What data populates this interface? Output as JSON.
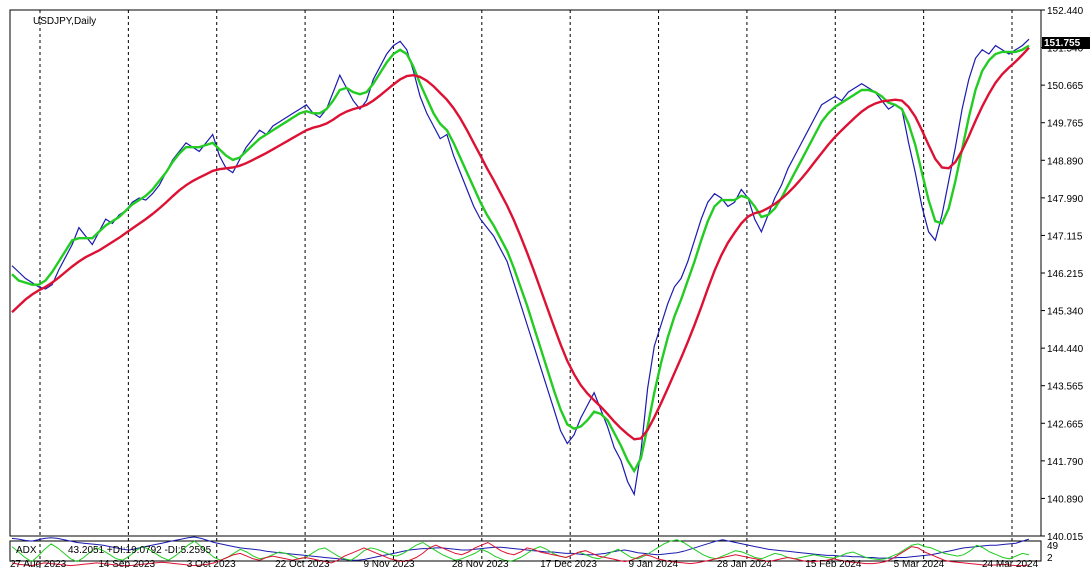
{
  "chart_data": [
    {
      "type": "line",
      "title": "USDJPY,Daily",
      "price_current": "151.755",
      "ylim": [
        140.015,
        152.44
      ],
      "y_ticks": [
        "152.440",
        "151.540",
        "150.665",
        "149.765",
        "148.890",
        "147.990",
        "147.115",
        "146.215",
        "145.340",
        "144.440",
        "143.565",
        "142.665",
        "141.790",
        "140.890",
        "140.015"
      ],
      "x_ticks": [
        "27 Aug 2023",
        "14 Sep 2023",
        "3 Oct 2023",
        "22 Oct 2023",
        "9 Nov 2023",
        "28 Nov 2023",
        "17 Dec 2023",
        "9 Jan 2024",
        "28 Jan 2024",
        "15 Feb 2024",
        "5 Mar 2024",
        "24 Mar 2024"
      ],
      "grid": "vertical dashed",
      "colors": {
        "price": "#1b1bb0",
        "fast_ma": "#22cc22",
        "slow_ma": "#dd1133"
      },
      "series": [
        {
          "key": "price",
          "values": [
            146.4,
            146.25,
            146.1,
            146.0,
            145.9,
            145.85,
            145.95,
            146.3,
            146.6,
            146.9,
            147.3,
            147.1,
            146.9,
            147.2,
            147.5,
            147.4,
            147.6,
            147.7,
            147.9,
            148.0,
            147.95,
            148.1,
            148.3,
            148.6,
            148.9,
            149.1,
            149.3,
            149.2,
            149.1,
            149.3,
            149.5,
            149.0,
            148.7,
            148.6,
            148.9,
            149.2,
            149.4,
            149.6,
            149.5,
            149.7,
            149.8,
            149.9,
            150.0,
            150.1,
            150.2,
            150.0,
            149.9,
            150.1,
            150.5,
            150.9,
            150.6,
            150.3,
            150.1,
            150.3,
            150.8,
            151.1,
            151.4,
            151.6,
            151.7,
            151.5,
            151.0,
            150.4,
            150.0,
            149.7,
            149.4,
            149.5,
            149.0,
            148.6,
            148.2,
            147.8,
            147.5,
            147.3,
            147.1,
            146.8,
            146.5,
            146.0,
            145.5,
            145.0,
            144.5,
            144.0,
            143.5,
            143.0,
            142.5,
            142.2,
            142.4,
            142.8,
            143.1,
            143.4,
            143.0,
            142.6,
            142.1,
            141.8,
            141.3,
            141.0,
            142.0,
            143.5,
            144.5,
            145.0,
            145.5,
            145.9,
            146.1,
            146.5,
            147.0,
            147.5,
            147.9,
            148.1,
            148.0,
            147.8,
            147.9,
            148.2,
            148.0,
            147.5,
            147.2,
            147.6,
            148.0,
            148.3,
            148.7,
            149.0,
            149.3,
            149.6,
            149.9,
            150.2,
            150.3,
            150.4,
            150.3,
            150.5,
            150.6,
            150.7,
            150.6,
            150.5,
            150.3,
            150.1,
            150.2,
            150.1,
            149.3,
            148.6,
            147.8,
            147.2,
            147.0,
            147.6,
            148.4,
            149.2,
            150.1,
            150.8,
            151.3,
            151.5,
            151.4,
            151.6,
            151.5,
            151.4,
            151.5,
            151.6,
            151.75
          ]
        },
        {
          "key": "fast_ma",
          "values": [
            146.2,
            146.05,
            146.0,
            145.95,
            145.95,
            146.05,
            146.25,
            146.5,
            146.75,
            147.0,
            147.05,
            147.05,
            147.05,
            147.2,
            147.35,
            147.45,
            147.55,
            147.7,
            147.85,
            147.95,
            148.05,
            148.2,
            148.4,
            148.6,
            148.85,
            149.05,
            149.2,
            149.2,
            149.2,
            149.25,
            149.3,
            149.15,
            149.0,
            148.9,
            148.95,
            149.1,
            149.25,
            149.4,
            149.5,
            149.6,
            149.7,
            149.8,
            149.9,
            150.0,
            150.05,
            150.0,
            150.0,
            150.1,
            150.3,
            150.55,
            150.6,
            150.5,
            150.45,
            150.5,
            150.7,
            150.95,
            151.2,
            151.4,
            151.5,
            151.4,
            151.1,
            150.7,
            150.35,
            150.0,
            149.75,
            149.6,
            149.3,
            148.95,
            148.6,
            148.25,
            147.9,
            147.6,
            147.35,
            147.05,
            146.75,
            146.35,
            145.9,
            145.45,
            144.95,
            144.45,
            143.95,
            143.45,
            143.0,
            142.65,
            142.55,
            142.6,
            142.75,
            142.95,
            142.9,
            142.75,
            142.45,
            142.15,
            141.8,
            141.55,
            141.85,
            142.6,
            143.4,
            144.1,
            144.7,
            145.2,
            145.6,
            146.05,
            146.5,
            147.0,
            147.45,
            147.8,
            147.95,
            147.95,
            147.95,
            148.05,
            148.0,
            147.8,
            147.55,
            147.6,
            147.75,
            148.0,
            148.3,
            148.6,
            148.9,
            149.2,
            149.5,
            149.8,
            150.0,
            150.15,
            150.25,
            150.35,
            150.45,
            150.55,
            150.55,
            150.5,
            150.4,
            150.25,
            150.2,
            150.1,
            149.75,
            149.25,
            148.6,
            147.95,
            147.45,
            147.4,
            147.75,
            148.4,
            149.15,
            149.9,
            150.55,
            151.0,
            151.25,
            151.4,
            151.45,
            151.45,
            151.45,
            151.5,
            151.6
          ]
        },
        {
          "key": "slow_ma",
          "values": [
            145.3,
            145.45,
            145.6,
            145.72,
            145.82,
            145.9,
            146.0,
            146.12,
            146.25,
            146.38,
            146.5,
            146.6,
            146.68,
            146.76,
            146.86,
            146.96,
            147.06,
            147.17,
            147.28,
            147.39,
            147.5,
            147.62,
            147.75,
            147.89,
            148.04,
            148.18,
            148.3,
            148.4,
            148.48,
            148.56,
            148.64,
            148.68,
            148.7,
            148.72,
            148.76,
            148.82,
            148.9,
            148.98,
            149.06,
            149.15,
            149.24,
            149.33,
            149.42,
            149.51,
            149.6,
            149.66,
            149.7,
            149.76,
            149.85,
            149.96,
            150.04,
            150.1,
            150.14,
            150.2,
            150.3,
            150.42,
            150.55,
            150.68,
            150.8,
            150.88,
            150.9,
            150.86,
            150.77,
            150.64,
            150.48,
            150.32,
            150.12,
            149.88,
            149.6,
            149.3,
            149.0,
            148.7,
            148.42,
            148.12,
            147.82,
            147.48,
            147.1,
            146.7,
            146.28,
            145.84,
            145.4,
            144.96,
            144.54,
            144.15,
            143.84,
            143.58,
            143.38,
            143.22,
            143.07,
            142.9,
            142.72,
            142.56,
            142.42,
            142.3,
            142.32,
            142.52,
            142.82,
            143.15,
            143.5,
            143.86,
            144.22,
            144.6,
            145.0,
            145.42,
            145.86,
            146.28,
            146.64,
            146.94,
            147.18,
            147.4,
            147.56,
            147.64,
            147.68,
            147.76,
            147.86,
            147.98,
            148.12,
            148.28,
            148.46,
            148.65,
            148.86,
            149.06,
            149.26,
            149.44,
            149.6,
            149.75,
            149.9,
            150.04,
            150.15,
            150.23,
            150.28,
            150.3,
            150.32,
            150.3,
            150.15,
            149.92,
            149.6,
            149.25,
            148.92,
            148.72,
            148.7,
            148.85,
            149.12,
            149.46,
            149.82,
            150.16,
            150.46,
            150.72,
            150.92,
            151.08,
            151.22,
            151.38,
            151.55
          ]
        }
      ]
    },
    {
      "type": "line",
      "title": "ADX",
      "readout": "43.2051 +DI:19.0792 -DI:5.2595",
      "ylim": [
        2,
        49
      ],
      "y_ticks": [
        "49",
        "2"
      ],
      "colors": {
        "adx": "#1b1bb0",
        "plus_di": "#22cc22",
        "minus_di": "#dd1133"
      },
      "series": [
        {
          "key": "adx",
          "values": [
            44,
            43,
            41,
            40,
            42,
            44,
            45,
            44,
            42,
            40,
            38,
            37,
            36,
            35,
            34,
            32,
            30,
            28,
            27,
            29,
            31,
            33,
            35,
            37,
            39,
            41,
            43,
            45,
            46,
            44,
            41,
            38,
            36,
            34,
            32,
            30,
            29,
            28,
            27,
            25,
            24,
            23,
            22,
            21,
            20,
            19,
            18,
            17,
            16,
            15,
            14,
            13,
            12,
            12,
            13,
            15,
            17,
            19,
            21,
            23,
            25,
            27,
            28,
            29,
            29,
            30,
            30,
            29,
            28,
            27,
            27,
            28,
            29,
            30,
            31,
            31,
            30,
            29,
            28,
            27,
            26,
            25,
            24,
            24,
            23,
            22,
            22,
            21,
            20,
            20,
            21,
            22,
            24,
            26,
            27,
            25,
            23,
            22,
            21,
            20,
            21,
            22,
            23,
            25,
            28,
            31,
            34,
            37,
            40,
            42,
            40,
            38,
            36,
            34,
            32,
            30,
            28,
            27,
            26,
            25,
            24,
            23,
            22,
            21,
            20,
            19,
            19,
            18,
            18,
            17,
            17,
            16,
            16,
            15,
            15,
            15,
            16,
            16,
            17,
            18,
            19,
            20,
            22,
            24,
            26,
            28,
            30,
            31,
            32,
            33,
            34,
            34,
            35,
            36,
            37,
            40,
            43
          ]
        },
        {
          "key": "plus_di",
          "values": [
            32,
            24,
            16,
            10,
            18,
            28,
            36,
            30,
            22,
            14,
            10,
            16,
            24,
            30,
            26,
            20,
            14,
            12,
            18,
            26,
            32,
            28,
            22,
            16,
            12,
            18,
            26,
            34,
            40,
            32,
            24,
            16,
            12,
            16,
            22,
            28,
            24,
            18,
            14,
            16,
            20,
            24,
            22,
            18,
            14,
            16,
            22,
            28,
            30,
            24,
            18,
            14,
            12,
            18,
            26,
            30,
            28,
            24,
            20,
            18,
            22,
            28,
            34,
            38,
            32,
            26,
            20,
            16,
            12,
            14,
            18,
            22,
            28,
            24,
            18,
            14,
            10,
            12,
            16,
            22,
            28,
            32,
            28,
            22,
            18,
            16,
            20,
            24,
            20,
            16,
            14,
            18,
            24,
            28,
            22,
            16,
            14,
            18,
            24,
            30,
            36,
            40,
            42,
            38,
            32,
            26,
            20,
            16,
            14,
            18,
            22,
            26,
            24,
            20,
            16,
            14,
            18,
            22,
            20,
            16,
            14,
            16,
            18,
            20,
            18,
            16,
            15,
            18,
            22,
            24,
            20,
            16,
            14,
            13,
            14,
            18,
            22,
            28,
            34,
            36,
            32,
            30,
            26,
            22,
            20,
            18,
            20,
            26,
            34,
            30,
            24,
            20,
            16,
            14,
            18,
            22,
            20
          ]
        },
        {
          "key": "minus_di",
          "values": [
            8,
            6,
            5,
            4,
            6,
            8,
            7,
            6,
            5,
            4,
            5,
            6,
            7,
            8,
            7,
            6,
            5,
            4,
            4,
            5,
            6,
            7,
            8,
            9,
            8,
            7,
            6,
            5,
            4,
            5,
            6,
            8,
            12,
            16,
            20,
            22,
            18,
            14,
            12,
            16,
            18,
            16,
            14,
            12,
            14,
            16,
            14,
            12,
            10,
            8,
            12,
            18,
            22,
            26,
            30,
            26,
            22,
            18,
            14,
            12,
            10,
            12,
            16,
            22,
            30,
            34,
            30,
            26,
            22,
            20,
            24,
            30,
            34,
            38,
            32,
            26,
            22,
            20,
            24,
            30,
            28,
            24,
            22,
            20,
            18,
            16,
            20,
            24,
            26,
            22,
            18,
            16,
            14,
            12,
            10,
            12,
            16,
            20,
            18,
            14,
            12,
            10,
            9,
            8,
            7,
            8,
            10,
            12,
            14,
            16,
            18,
            20,
            18,
            16,
            14,
            12,
            10,
            12,
            14,
            16,
            14,
            12,
            10,
            10,
            11,
            12,
            14,
            12,
            10,
            9,
            8,
            7,
            7,
            8,
            10,
            14,
            20,
            26,
            32,
            30,
            24,
            20,
            16,
            12,
            10,
            9,
            8,
            7,
            6,
            5,
            5,
            5,
            6,
            5,
            4,
            4,
            5
          ]
        }
      ]
    }
  ]
}
